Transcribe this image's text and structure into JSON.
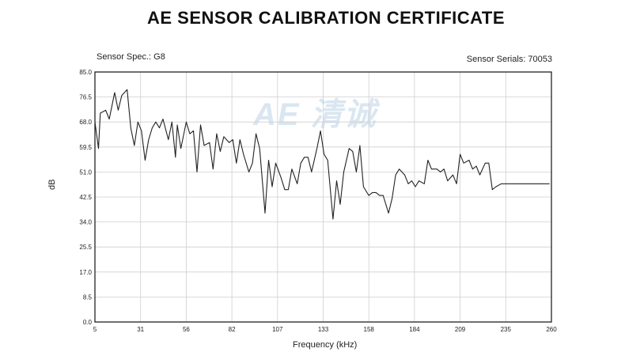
{
  "page": {
    "title": "AE SENSOR CALIBRATION CERTIFICATE",
    "sensor_spec": "Sensor Spec.: G8",
    "sensor_serials": "Sensor Serials: 70053",
    "watermark": "AE 清诚"
  },
  "chart_data": {
    "type": "line",
    "title": "",
    "xlabel": "Frequency (kHz)",
    "ylabel": "dB",
    "xlim": [
      5,
      260
    ],
    "ylim": [
      0,
      85
    ],
    "x_ticks": [
      "5",
      "31",
      "56",
      "82",
      "107",
      "133",
      "158",
      "184",
      "209",
      "235",
      "260"
    ],
    "y_ticks": [
      "0.0",
      "8.5",
      "17.0",
      "25.5",
      "34.0",
      "42.5",
      "51.0",
      "59.5",
      "68.0",
      "76.5",
      "85.0"
    ],
    "grid": true,
    "series": [
      {
        "x": [
          5,
          7,
          8,
          11,
          13,
          16,
          18,
          20,
          23,
          25,
          27,
          29,
          31,
          33,
          35,
          37,
          39,
          41,
          43,
          46,
          48,
          50,
          51,
          53,
          56,
          58,
          60,
          62,
          64,
          66,
          69,
          71,
          73,
          75,
          77,
          80,
          82,
          84,
          86,
          88,
          91,
          93,
          95,
          97,
          100,
          102,
          104,
          106,
          109,
          111,
          113,
          115,
          118,
          120,
          122,
          124,
          126,
          129,
          131,
          133,
          135,
          138,
          140,
          142,
          144,
          147,
          149,
          151,
          153,
          155,
          158,
          160,
          162,
          164,
          166,
          169,
          171,
          173,
          175,
          178,
          180,
          182,
          184,
          186,
          189,
          191,
          193,
          196,
          198,
          200,
          202,
          205,
          207,
          209,
          211,
          214,
          216,
          218,
          220,
          223,
          225,
          227,
          229,
          232,
          234,
          236,
          238,
          241,
          243,
          245,
          248,
          250,
          252,
          254,
          257,
          259
        ],
        "y": [
          68.0,
          59.0,
          71.0,
          72.0,
          69.0,
          78.0,
          72.0,
          77.0,
          79.0,
          66.0,
          60.0,
          68.0,
          65.0,
          55.0,
          62.0,
          66.0,
          68.0,
          66.0,
          69.0,
          62.0,
          68.0,
          56.0,
          67.0,
          59.0,
          68.0,
          64.0,
          65.0,
          51.0,
          67.0,
          60.0,
          61.0,
          52.0,
          64.0,
          58.0,
          63.0,
          61.0,
          62.0,
          54.0,
          62.0,
          57.0,
          51.0,
          54.0,
          64.0,
          59.0,
          37.0,
          55.0,
          46.0,
          54.0,
          49.0,
          45.0,
          45.0,
          52.0,
          47.0,
          54.0,
          56.0,
          56.0,
          51.0,
          59.0,
          65.0,
          57.0,
          55.0,
          35.0,
          48.0,
          40.0,
          51.0,
          59.0,
          58.0,
          51.0,
          60.0,
          46.0,
          43.0,
          44.0,
          44.0,
          43.0,
          43.0,
          37.0,
          42.0,
          50.0,
          52.0,
          50.0,
          47.0,
          48.0,
          46.0,
          48.0,
          47.0,
          55.0,
          52.0,
          52.0,
          51.0,
          52.0,
          48.0,
          50.0,
          47.0,
          57.0,
          54.0,
          55.0,
          52.0,
          53.0,
          50.0,
          54.0,
          54.0,
          45.0,
          46.0,
          47.0,
          47.0,
          47.0,
          47.0,
          47.0,
          47.0,
          47.0,
          47.0,
          47.0,
          47.0,
          47.0,
          47.0,
          47.0
        ]
      }
    ]
  }
}
